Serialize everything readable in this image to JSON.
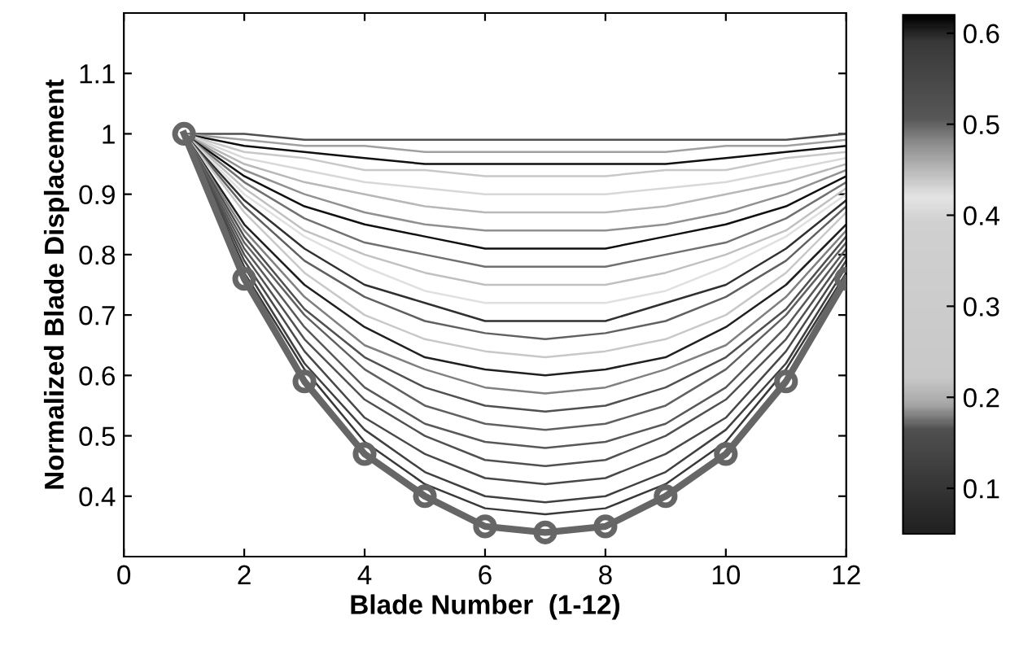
{
  "chart_data": {
    "type": "line",
    "xlabel": "Blade Number  (1-12)",
    "ylabel": "Normalized Blade Displacement",
    "x": [
      1,
      2,
      3,
      4,
      5,
      6,
      7,
      8,
      9,
      10,
      11,
      12
    ],
    "xlim": [
      0,
      12
    ],
    "xticks": [
      0,
      2,
      4,
      6,
      8,
      10,
      12
    ],
    "ylim": [
      0.3,
      1.2
    ],
    "yticks": [
      0.4,
      0.5,
      0.6,
      0.7,
      0.8,
      0.9,
      1,
      1.1
    ],
    "clim": [
      0.05,
      0.62
    ],
    "cticks": [
      0.1,
      0.2,
      0.3,
      0.4,
      0.5,
      0.6
    ],
    "grid": false,
    "legend": false,
    "series": [
      {
        "color": "#505050",
        "values": [
          1,
          1,
          0.99,
          0.99,
          0.99,
          0.99,
          0.99,
          0.99,
          0.99,
          0.99,
          0.99,
          1
        ]
      },
      {
        "color": "#a0a0a0",
        "values": [
          1,
          0.99,
          0.98,
          0.98,
          0.97,
          0.97,
          0.97,
          0.97,
          0.97,
          0.98,
          0.98,
          0.99
        ]
      },
      {
        "color": "#101010",
        "values": [
          1,
          0.98,
          0.97,
          0.96,
          0.95,
          0.95,
          0.95,
          0.95,
          0.95,
          0.96,
          0.97,
          0.98
        ]
      },
      {
        "color": "#c8c8c8",
        "values": [
          1,
          0.97,
          0.96,
          0.94,
          0.94,
          0.93,
          0.93,
          0.93,
          0.94,
          0.94,
          0.96,
          0.97
        ]
      },
      {
        "color": "#d8d8d8",
        "values": [
          1,
          0.96,
          0.94,
          0.92,
          0.91,
          0.9,
          0.9,
          0.9,
          0.91,
          0.92,
          0.94,
          0.96
        ]
      },
      {
        "color": "#b8b8b8",
        "values": [
          1,
          0.95,
          0.92,
          0.9,
          0.88,
          0.87,
          0.87,
          0.87,
          0.88,
          0.9,
          0.92,
          0.95
        ]
      },
      {
        "color": "#909090",
        "values": [
          1,
          0.94,
          0.9,
          0.87,
          0.85,
          0.84,
          0.84,
          0.84,
          0.85,
          0.87,
          0.9,
          0.94
        ]
      },
      {
        "color": "#101010",
        "values": [
          1,
          0.93,
          0.88,
          0.85,
          0.83,
          0.81,
          0.81,
          0.81,
          0.83,
          0.85,
          0.88,
          0.93
        ]
      },
      {
        "color": "#707070",
        "values": [
          1,
          0.92,
          0.86,
          0.82,
          0.8,
          0.78,
          0.78,
          0.78,
          0.8,
          0.82,
          0.86,
          0.92
        ]
      },
      {
        "color": "#c0c0c0",
        "values": [
          1,
          0.91,
          0.84,
          0.8,
          0.77,
          0.75,
          0.75,
          0.75,
          0.77,
          0.8,
          0.84,
          0.91
        ]
      },
      {
        "color": "#e0e0e0",
        "values": [
          1,
          0.9,
          0.83,
          0.78,
          0.74,
          0.72,
          0.72,
          0.72,
          0.74,
          0.78,
          0.83,
          0.9
        ]
      },
      {
        "color": "#303030",
        "values": [
          1,
          0.89,
          0.81,
          0.75,
          0.72,
          0.69,
          0.69,
          0.69,
          0.72,
          0.75,
          0.81,
          0.89
        ]
      },
      {
        "color": "#606060",
        "values": [
          1,
          0.88,
          0.79,
          0.73,
          0.69,
          0.67,
          0.66,
          0.67,
          0.69,
          0.73,
          0.79,
          0.88
        ]
      },
      {
        "color": "#c8c8c8",
        "values": [
          1,
          0.87,
          0.77,
          0.7,
          0.66,
          0.64,
          0.63,
          0.64,
          0.66,
          0.7,
          0.77,
          0.87
        ]
      },
      {
        "color": "#202020",
        "values": [
          1,
          0.85,
          0.75,
          0.68,
          0.63,
          0.61,
          0.6,
          0.61,
          0.63,
          0.68,
          0.75,
          0.85
        ]
      },
      {
        "color": "#808080",
        "values": [
          1,
          0.84,
          0.73,
          0.65,
          0.61,
          0.58,
          0.57,
          0.58,
          0.61,
          0.65,
          0.73,
          0.84
        ]
      },
      {
        "color": "#505050",
        "values": [
          1,
          0.83,
          0.71,
          0.63,
          0.58,
          0.55,
          0.54,
          0.55,
          0.58,
          0.63,
          0.71,
          0.83
        ]
      },
      {
        "color": "#606060",
        "values": [
          1,
          0.82,
          0.7,
          0.61,
          0.55,
          0.52,
          0.51,
          0.52,
          0.55,
          0.61,
          0.7,
          0.82
        ]
      },
      {
        "color": "#585858",
        "values": [
          1,
          0.81,
          0.68,
          0.58,
          0.52,
          0.49,
          0.48,
          0.49,
          0.52,
          0.58,
          0.68,
          0.81
        ]
      },
      {
        "color": "#505050",
        "values": [
          1,
          0.8,
          0.66,
          0.56,
          0.5,
          0.46,
          0.45,
          0.46,
          0.5,
          0.56,
          0.66,
          0.8
        ]
      },
      {
        "color": "#484848",
        "values": [
          1,
          0.79,
          0.64,
          0.53,
          0.47,
          0.43,
          0.42,
          0.43,
          0.47,
          0.53,
          0.64,
          0.79
        ]
      },
      {
        "color": "#404040",
        "values": [
          1,
          0.78,
          0.62,
          0.51,
          0.44,
          0.4,
          0.39,
          0.4,
          0.44,
          0.51,
          0.62,
          0.78
        ]
      },
      {
        "color": "#383838",
        "values": [
          1,
          0.77,
          0.61,
          0.49,
          0.42,
          0.38,
          0.37,
          0.38,
          0.42,
          0.49,
          0.61,
          0.77
        ]
      },
      {
        "color": "#666666",
        "marker": "circle",
        "values": [
          1,
          0.76,
          0.59,
          0.47,
          0.4,
          0.35,
          0.34,
          0.35,
          0.4,
          0.47,
          0.59,
          0.76
        ]
      }
    ]
  }
}
